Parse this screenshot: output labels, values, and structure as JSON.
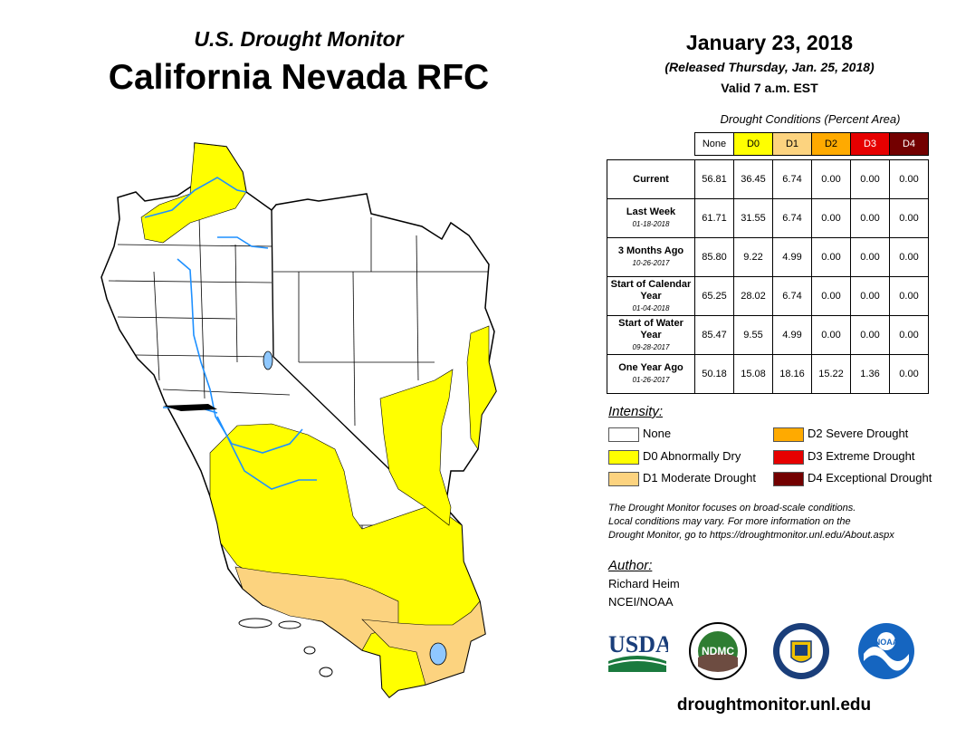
{
  "header": {
    "subtitle": "U.S. Drought Monitor",
    "title": "California Nevada RFC",
    "date": "January 23, 2018",
    "released": "(Released Thursday, Jan. 25, 2018)",
    "valid": "Valid 7 a.m. EST"
  },
  "table": {
    "caption": "Drought Conditions (Percent Area)",
    "columns": [
      "None",
      "D0",
      "D1",
      "D2",
      "D3",
      "D4"
    ],
    "rows": [
      {
        "label": "Current",
        "date": "",
        "values": [
          "56.81",
          "36.45",
          "6.74",
          "0.00",
          "0.00",
          "0.00"
        ]
      },
      {
        "label": "Last Week",
        "date": "01-18-2018",
        "values": [
          "61.71",
          "31.55",
          "6.74",
          "0.00",
          "0.00",
          "0.00"
        ]
      },
      {
        "label": "3 Months Ago",
        "date": "10-26-2017",
        "values": [
          "85.80",
          "9.22",
          "4.99",
          "0.00",
          "0.00",
          "0.00"
        ]
      },
      {
        "label": "Start of Calendar Year",
        "date": "01-04-2018",
        "values": [
          "65.25",
          "28.02",
          "6.74",
          "0.00",
          "0.00",
          "0.00"
        ]
      },
      {
        "label": "Start of Water Year",
        "date": "09-28-2017",
        "values": [
          "85.47",
          "9.55",
          "4.99",
          "0.00",
          "0.00",
          "0.00"
        ]
      },
      {
        "label": "One Year Ago",
        "date": "01-26-2017",
        "values": [
          "50.18",
          "15.08",
          "18.16",
          "15.22",
          "1.36",
          "0.00"
        ]
      }
    ]
  },
  "legend": {
    "heading": "Intensity:",
    "items": [
      {
        "label": "None",
        "color": "#ffffff"
      },
      {
        "label": "D0 Abnormally Dry",
        "color": "#ffff00"
      },
      {
        "label": "D1 Moderate Drought",
        "color": "#fcd37f"
      },
      {
        "label": "D2 Severe Drought",
        "color": "#ffaa00"
      },
      {
        "label": "D3 Extreme Drought",
        "color": "#e60000"
      },
      {
        "label": "D4 Exceptional Drought",
        "color": "#730000"
      }
    ]
  },
  "note": {
    "line1": "The Drought Monitor focuses on broad-scale conditions.",
    "line2": "Local conditions may vary. For more information on the",
    "line3": "Drought Monitor, go to https://droughtmonitor.unl.edu/About.aspx"
  },
  "author": {
    "heading": "Author:",
    "name": "Richard Heim",
    "org": "NCEI/NOAA"
  },
  "logos": {
    "usda": "USDA",
    "ndmc": "NDMC",
    "noaa": "NOAA"
  },
  "footer": {
    "url": "droughtmonitor.unl.edu"
  },
  "colors": {
    "d0": "#ffff00",
    "d1": "#fcd37f",
    "d2": "#ffaa00",
    "d3": "#e60000",
    "d4": "#730000",
    "water": "#1e90ff"
  }
}
